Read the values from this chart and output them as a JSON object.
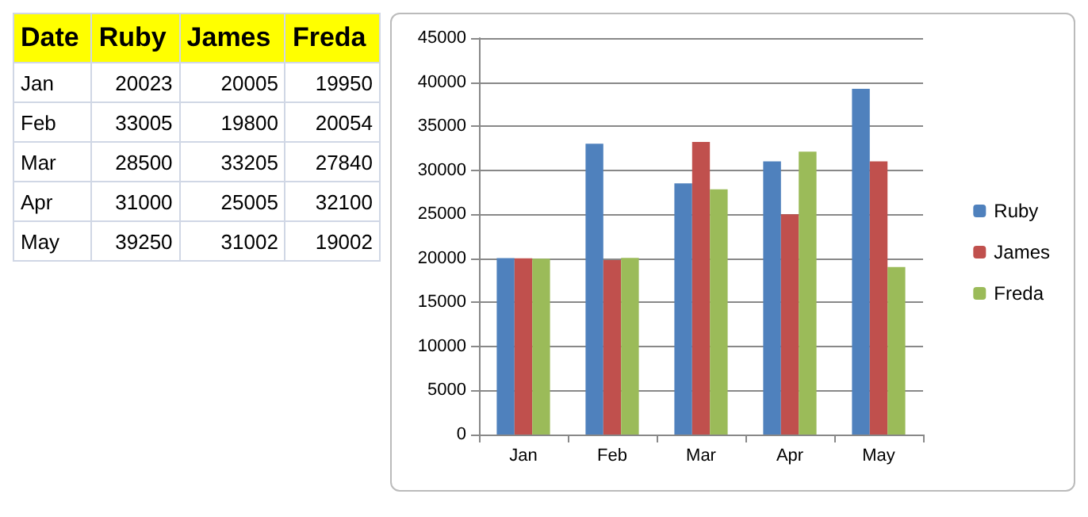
{
  "chart_data": [
    {
      "type": "other",
      "annotations": [
        "Date",
        "Ruby",
        "James",
        "Freda",
        "Jan",
        "20023",
        "20005",
        "19950",
        "Feb",
        "33005",
        "19800",
        "20054",
        "Mar",
        "28500",
        "33205",
        "27840",
        "Apr",
        "31000",
        "25005",
        "32100",
        "May",
        "39250",
        "31002",
        "19002"
      ]
    },
    {
      "type": "bar",
      "categories": [
        "Jan",
        "Feb",
        "Mar",
        "Apr",
        "May"
      ],
      "series": [
        {
          "name": "Ruby",
          "color": "#4f81bd",
          "values": [
            20023,
            33005,
            28500,
            31000,
            39250
          ]
        },
        {
          "name": "James",
          "color": "#c0504d",
          "values": [
            20005,
            19800,
            33205,
            25005,
            31002
          ]
        },
        {
          "name": "Freda",
          "color": "#9bbb59",
          "values": [
            19950,
            20054,
            27840,
            32100,
            19002
          ]
        }
      ],
      "ylim": [
        0,
        45000
      ],
      "yticks": [
        0,
        5000,
        10000,
        15000,
        20000,
        25000,
        30000,
        35000,
        40000,
        45000
      ],
      "grid": "y",
      "legend": "right"
    }
  ]
}
